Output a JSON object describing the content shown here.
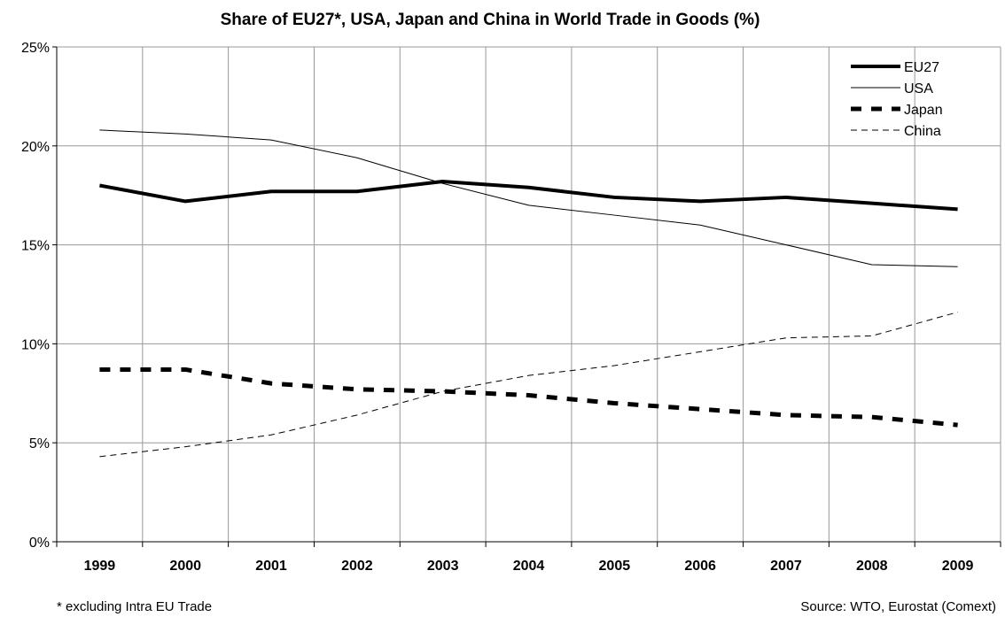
{
  "chart_data": {
    "type": "line",
    "title": "Share of EU27*, USA, Japan and China in World Trade in Goods (%)",
    "x": [
      "1999",
      "2000",
      "2001",
      "2002",
      "2003",
      "2004",
      "2005",
      "2006",
      "2007",
      "2008",
      "2009"
    ],
    "ylim": [
      0,
      25
    ],
    "yticks": [
      "0%",
      "5%",
      "10%",
      "15%",
      "20%",
      "25%"
    ],
    "grid": true,
    "legend_position": "top-right",
    "series": [
      {
        "name": "EU27",
        "style": "thick-solid",
        "values": [
          18.0,
          17.2,
          17.7,
          17.7,
          18.2,
          17.9,
          17.4,
          17.2,
          17.4,
          17.1,
          16.8
        ]
      },
      {
        "name": "USA",
        "style": "thin-solid",
        "values": [
          20.8,
          20.6,
          20.3,
          19.4,
          18.1,
          17.0,
          16.5,
          16.0,
          15.0,
          14.0,
          13.9
        ]
      },
      {
        "name": "Japan",
        "style": "thick-dashed",
        "values": [
          8.7,
          8.7,
          8.0,
          7.7,
          7.6,
          7.4,
          7.0,
          6.7,
          6.4,
          6.3,
          5.9
        ]
      },
      {
        "name": "China",
        "style": "thin-dashed",
        "values": [
          4.3,
          4.8,
          5.4,
          6.4,
          7.6,
          8.4,
          8.9,
          9.6,
          10.3,
          10.4,
          11.6
        ]
      }
    ],
    "footnote": "* excluding Intra EU Trade",
    "source": "Source: WTO, Eurostat (Comext)"
  },
  "colors": {
    "line": "#000000",
    "grid": "#999999",
    "background": "#ffffff"
  }
}
